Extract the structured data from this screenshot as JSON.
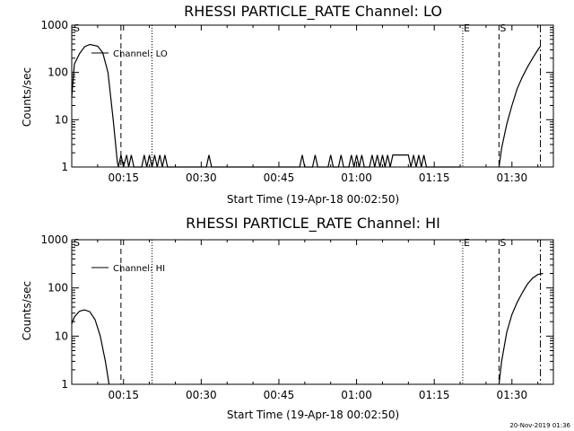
{
  "chart_data": [
    {
      "type": "line",
      "title": "RHESSI PARTICLE_RATE Channel: LO",
      "xlabel": "Start Time (19-Apr-18 00:02:50)",
      "ylabel": "Counts/sec",
      "yscale": "log",
      "ylim": [
        1,
        1000
      ],
      "xlim_minutes": [
        5,
        98
      ],
      "x_tick_labels": [
        "00:15",
        "00:30",
        "00:45",
        "01:00",
        "01:15",
        "01:30"
      ],
      "x_tick_minutes": [
        15,
        30,
        45,
        60,
        75,
        90
      ],
      "y_tick_labels": [
        "1",
        "10",
        "100",
        "1000"
      ],
      "y_tick_values": [
        1,
        10,
        100,
        1000
      ],
      "legend": "Channel: LO",
      "legend_placement": "top-left",
      "markers": {
        "left_label": "S",
        "eclipse_label": "E",
        "saa_label": "S",
        "dashed_minutes": [
          14.5,
          87.5
        ],
        "dotted_minutes": [
          20.5,
          80.5
        ],
        "dashdot_minutes": [
          95.5
        ]
      },
      "series": [
        {
          "segments": [
            [
              [
                5,
                30
              ],
              [
                5.5,
                150
              ],
              [
                6.5,
                250
              ],
              [
                7.5,
                350
              ],
              [
                8.5,
                390
              ],
              [
                10,
                360
              ],
              [
                11,
                260
              ],
              [
                12,
                100
              ],
              [
                13,
                10
              ],
              [
                13.8,
                1.3
              ],
              [
                14,
                1
              ]
            ],
            [
              [
                14,
                1
              ],
              [
                14.5,
                1.8
              ],
              [
                15,
                1
              ],
              [
                15.6,
                1.8
              ],
              [
                16,
                1
              ],
              [
                16.5,
                1.8
              ],
              [
                17,
                1
              ],
              [
                18.5,
                1
              ],
              [
                19,
                1.8
              ],
              [
                19.5,
                1
              ],
              [
                20,
                1.8
              ],
              [
                20.5,
                1
              ],
              [
                21,
                1.8
              ],
              [
                21.5,
                1
              ],
              [
                22,
                1.8
              ],
              [
                22.5,
                1
              ],
              [
                23,
                1.8
              ],
              [
                23.5,
                1
              ],
              [
                31,
                1
              ],
              [
                31.5,
                1.8
              ],
              [
                32,
                1
              ],
              [
                49,
                1
              ],
              [
                49.5,
                1.8
              ],
              [
                50,
                1
              ],
              [
                51.5,
                1
              ],
              [
                52,
                1.8
              ],
              [
                52.5,
                1
              ],
              [
                54.5,
                1
              ],
              [
                55,
                1.8
              ],
              [
                55.5,
                1
              ],
              [
                56.5,
                1
              ],
              [
                57,
                1.8
              ],
              [
                57.5,
                1
              ],
              [
                58.5,
                1
              ],
              [
                59,
                1.8
              ],
              [
                59.5,
                1
              ],
              [
                60,
                1.8
              ],
              [
                60.5,
                1
              ],
              [
                61,
                1.8
              ],
              [
                61.5,
                1
              ],
              [
                62.5,
                1
              ],
              [
                63,
                1.8
              ],
              [
                63.5,
                1
              ],
              [
                64,
                1.8
              ],
              [
                64.5,
                1
              ],
              [
                65,
                1.8
              ],
              [
                65.5,
                1
              ],
              [
                66,
                1.8
              ],
              [
                66.5,
                1
              ],
              [
                67,
                1.8
              ],
              [
                70,
                1.8
              ],
              [
                70.5,
                1
              ],
              [
                71,
                1.8
              ],
              [
                71.5,
                1
              ],
              [
                72,
                1.8
              ],
              [
                72.5,
                1
              ],
              [
                73,
                1.8
              ],
              [
                73.5,
                1
              ],
              [
                80,
                1
              ]
            ],
            [
              [
                87.5,
                1
              ],
              [
                88,
                2.5
              ],
              [
                89,
                8
              ],
              [
                90,
                20
              ],
              [
                91,
                45
              ],
              [
                92,
                80
              ],
              [
                93,
                130
              ],
              [
                94,
                200
              ],
              [
                95,
                300
              ],
              [
                95.5,
                360
              ]
            ]
          ]
        }
      ]
    },
    {
      "type": "line",
      "title": "RHESSI PARTICLE_RATE Channel: HI",
      "xlabel": "Start Time (19-Apr-18 00:02:50)",
      "ylabel": "Counts/sec",
      "yscale": "log",
      "ylim": [
        1,
        1000
      ],
      "xlim_minutes": [
        5,
        98
      ],
      "x_tick_labels": [
        "00:15",
        "00:30",
        "00:45",
        "01:00",
        "01:15",
        "01:30"
      ],
      "x_tick_minutes": [
        15,
        30,
        45,
        60,
        75,
        90
      ],
      "y_tick_labels": [
        "1",
        "10",
        "100",
        "1000"
      ],
      "y_tick_values": [
        1,
        10,
        100,
        1000
      ],
      "legend": "Channel: HI",
      "legend_placement": "top-left",
      "markers": {
        "left_label": "S",
        "eclipse_label": "E",
        "saa_label": "S",
        "dashed_minutes": [
          14.5,
          87.5
        ],
        "dotted_minutes": [
          20.5,
          80.5
        ],
        "dashdot_minutes": [
          95.5
        ]
      },
      "series": [
        {
          "segments": [
            [
              [
                5,
                18
              ],
              [
                5.5,
                25
              ],
              [
                6.5,
                33
              ],
              [
                7.5,
                35
              ],
              [
                8.5,
                32
              ],
              [
                9.5,
                22
              ],
              [
                10.5,
                10
              ],
              [
                11.5,
                3
              ],
              [
                12.2,
                1
              ]
            ],
            [
              [
                87.5,
                1
              ],
              [
                88,
                3
              ],
              [
                89,
                12
              ],
              [
                90,
                28
              ],
              [
                91,
                50
              ],
              [
                92,
                80
              ],
              [
                93,
                120
              ],
              [
                94,
                160
              ],
              [
                95,
                190
              ],
              [
                96,
                200
              ]
            ]
          ]
        }
      ]
    }
  ],
  "footer": {
    "stamp": "20-Nov-2019 01:36"
  }
}
